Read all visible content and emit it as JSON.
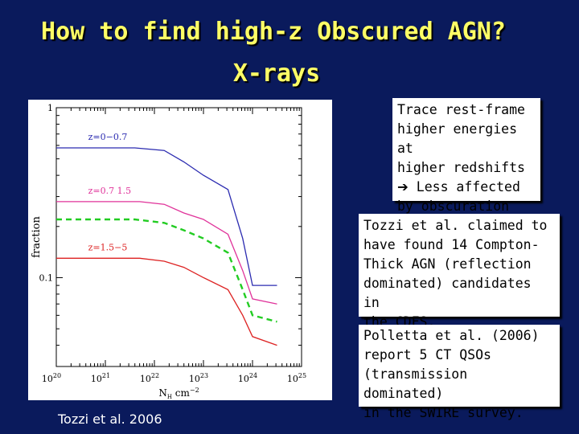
{
  "slide": {
    "title_line1": "How to find high-z Obscured AGN?",
    "title_line2": "X-rays",
    "box1": {
      "arrow_icon": "right-arrow",
      "lines": [
        "Trace rest-frame",
        "higher energies at",
        "higher redshifts",
        "Less affected",
        "by obscuration"
      ]
    },
    "box2": {
      "lines": [
        "Tozzi et al. claimed to",
        "have found 14 Compton-",
        "Thick AGN (reflection",
        "dominated) candidates in",
        "the CDFS."
      ]
    },
    "box3": {
      "lines": [
        "Polletta et al. (2006)",
        "report 5 CT QSOs",
        "(transmission dominated)",
        "in the SWIRE survey."
      ]
    },
    "credit": "Tozzi et al. 2006",
    "colors": {
      "background": "#0a1a5c",
      "title": "#ffff66"
    }
  },
  "chart_data": {
    "type": "line",
    "ylabel": "fraction",
    "xlabel": "N",
    "xlabel_sub": "H",
    "xlabel_unit": "cm",
    "xlabel_exp": "−2",
    "xscale": "log",
    "yscale": "log",
    "xlim": [
      1e+20,
      1e+25
    ],
    "ylim": [
      0.03,
      1
    ],
    "x_ticks": [
      {
        "base": "10",
        "exp": "20",
        "value": 20
      },
      {
        "base": "10",
        "exp": "21",
        "value": 21
      },
      {
        "base": "10",
        "exp": "22",
        "value": 22
      },
      {
        "base": "10",
        "exp": "23",
        "value": 23
      },
      {
        "base": "10",
        "exp": "24",
        "value": 24
      },
      {
        "base": "10",
        "exp": "25",
        "value": 25
      }
    ],
    "y_ticks": [
      {
        "label": "1",
        "value": 1
      },
      {
        "label": "0.1",
        "value": 0.1
      }
    ],
    "series": [
      {
        "name": "z=0−0.7",
        "color": "#2b2bb0",
        "dash": false,
        "x": [
          20,
          21.6,
          22.2,
          22.6,
          23.0,
          23.5,
          23.8,
          24.0,
          24.5
        ],
        "y": [
          0.58,
          0.58,
          0.56,
          0.48,
          0.4,
          0.33,
          0.17,
          0.09,
          0.09
        ]
      },
      {
        "name": "z=0.7  1.5",
        "color": "#e0339a",
        "dash": false,
        "x": [
          20,
          21.7,
          22.2,
          22.6,
          23.0,
          23.5,
          23.8,
          24.0,
          24.5
        ],
        "y": [
          0.28,
          0.28,
          0.27,
          0.24,
          0.22,
          0.18,
          0.11,
          0.075,
          0.07
        ]
      },
      {
        "name": "",
        "color": "#22cc22",
        "dash": true,
        "x": [
          20,
          21.6,
          22.2,
          22.6,
          23.0,
          23.5,
          23.8,
          24.0,
          24.5
        ],
        "y": [
          0.22,
          0.22,
          0.21,
          0.19,
          0.17,
          0.14,
          0.085,
          0.06,
          0.055
        ]
      },
      {
        "name": "z=1.5−5",
        "color": "#dd2222",
        "dash": false,
        "x": [
          20,
          21.7,
          22.2,
          22.6,
          23.0,
          23.5,
          23.8,
          24.0,
          24.5
        ],
        "y": [
          0.13,
          0.13,
          0.125,
          0.115,
          0.1,
          0.085,
          0.06,
          0.045,
          0.04
        ]
      }
    ],
    "annotations": [
      {
        "text": "z=0−0.7",
        "series": 0
      },
      {
        "text": "z=0.7  1.5",
        "series": 1
      },
      {
        "text": "z=1.5−5",
        "series": 3
      }
    ]
  }
}
